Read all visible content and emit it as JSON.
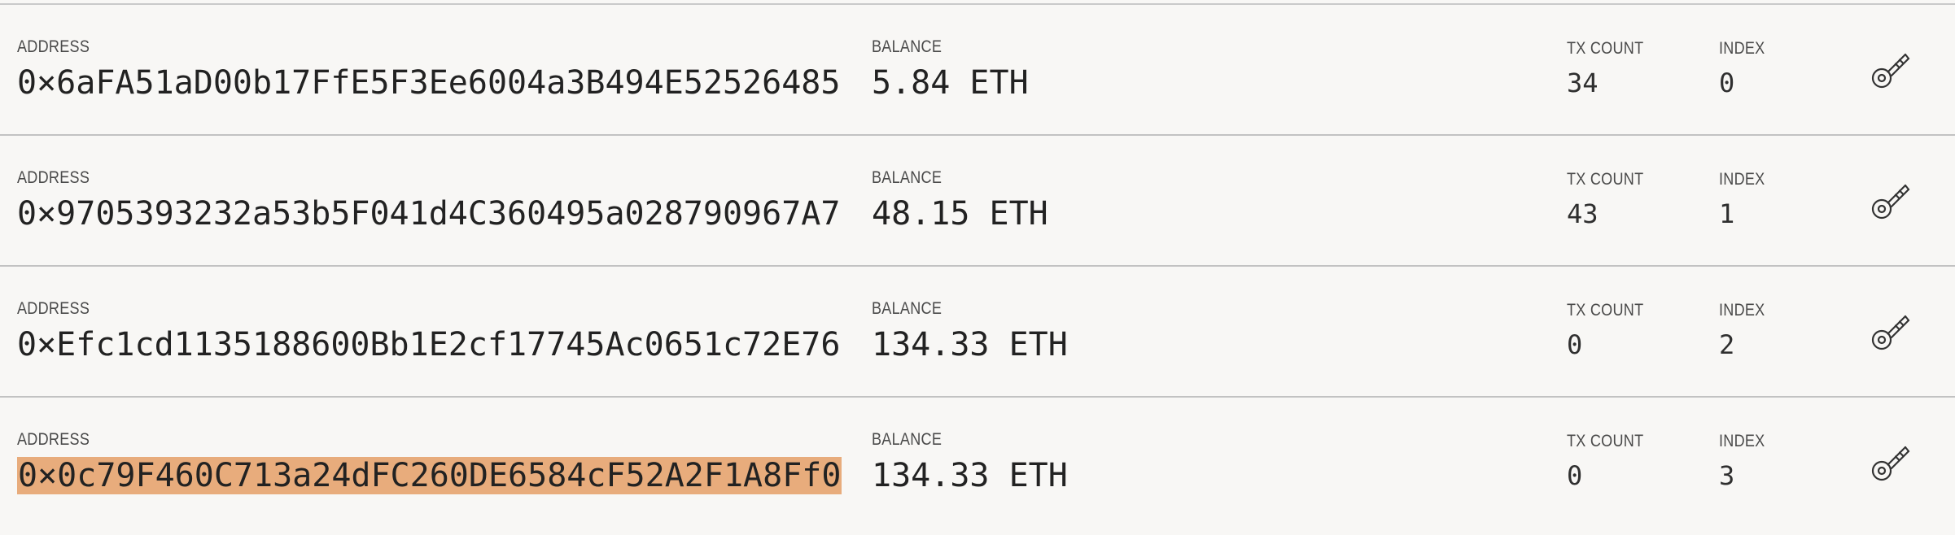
{
  "labels": {
    "address": "ADDRESS",
    "balance": "BALANCE",
    "tx_count": "TX COUNT",
    "index": "INDEX"
  },
  "accounts": [
    {
      "address": "0×6aFA51aD00b17FfE5F3Ee6004a3B494E52526485",
      "balance": "5.84 ETH",
      "tx_count": "34",
      "index": "0",
      "key_icon": "key-icon"
    },
    {
      "address": "0×9705393232a53b5F041d4C360495a028790967A7",
      "balance": "48.15 ETH",
      "tx_count": "43",
      "index": "1",
      "key_icon": "key-icon"
    },
    {
      "address": "0×Efc1cd1135188600Bb1E2cf17745Ac0651c72E76",
      "balance": "134.33 ETH",
      "tx_count": "0",
      "index": "2",
      "key_icon": "key-icon"
    },
    {
      "address": "0×0c79F460C713a24dFC260DE6584cF52A2F1A8Ff0",
      "balance": "134.33 ETH",
      "tx_count": "0",
      "index": "3",
      "key_icon": "key-icon",
      "selected": true
    }
  ],
  "colors": {
    "background": "#f8f7f5",
    "divider": "#c2c2c2",
    "selection_highlight": "#e8ac7c"
  }
}
